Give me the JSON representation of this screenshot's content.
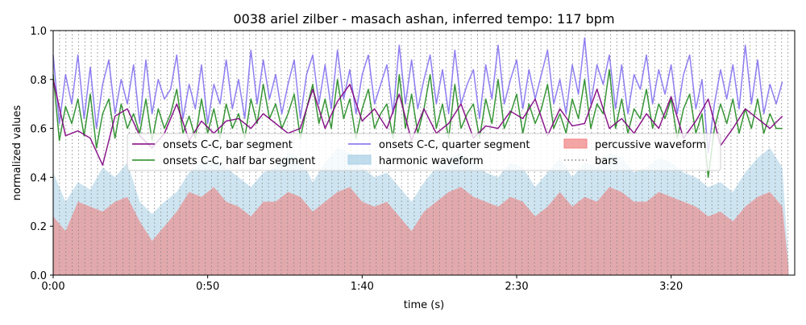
{
  "chart_data": {
    "type": "line",
    "title": "0038 ariel zilber - masach ashan, inferred tempo: 117 bpm",
    "xlabel": "time (s)",
    "ylabel": "normalized values",
    "xlim": [
      0,
      240
    ],
    "ylim": [
      0,
      1.0
    ],
    "grid": false,
    "legend_position": "upper-center",
    "x_ticks": [
      {
        "value": 0,
        "label": "0:00"
      },
      {
        "value": 50,
        "label": "0:50"
      },
      {
        "value": 100,
        "label": "1:40"
      },
      {
        "value": 150,
        "label": "2:30"
      },
      {
        "value": 200,
        "label": "3:20"
      }
    ],
    "y_ticks": [
      {
        "value": 0.0,
        "label": "0.0"
      },
      {
        "value": 0.2,
        "label": "0.2"
      },
      {
        "value": 0.4,
        "label": "0.4"
      },
      {
        "value": 0.6,
        "label": "0.6"
      },
      {
        "value": 0.8,
        "label": "0.8"
      },
      {
        "value": 1.0,
        "label": "1.0"
      }
    ],
    "legend": [
      {
        "label": "onsets C-C, bar segment",
        "color": "#800080",
        "kind": "line"
      },
      {
        "label": "onsets C-C, half bar segment",
        "color": "#228B22",
        "kind": "line"
      },
      {
        "label": "onsets C-C, quarter segment",
        "color": "#7B68EE",
        "kind": "line"
      },
      {
        "label": "harmonic waveform",
        "color": "#a6cfe6",
        "kind": "area"
      },
      {
        "label": "percussive waveform",
        "color": "#f08080",
        "kind": "area"
      },
      {
        "label": "bars",
        "color": "#808080",
        "kind": "dotted"
      }
    ],
    "bar_interval_s": 2.05,
    "duration_s": 238,
    "series": [
      {
        "name": "onsets C-C, bar segment",
        "color": "#800080",
        "x": [
          0,
          4,
          8,
          12,
          16,
          20,
          24,
          28,
          32,
          36,
          40,
          44,
          48,
          52,
          56,
          60,
          64,
          68,
          72,
          76,
          80,
          84,
          88,
          92,
          96,
          100,
          104,
          108,
          112,
          116,
          120,
          124,
          128,
          132,
          136,
          140,
          144,
          148,
          152,
          156,
          160,
          164,
          168,
          172,
          176,
          180,
          184,
          188,
          192,
          196,
          200,
          204,
          208,
          212,
          216,
          220,
          224,
          228,
          232,
          236
        ],
        "y": [
          0.8,
          0.57,
          0.59,
          0.56,
          0.45,
          0.65,
          0.68,
          0.57,
          0.52,
          0.58,
          0.7,
          0.55,
          0.63,
          0.58,
          0.63,
          0.64,
          0.6,
          0.66,
          0.62,
          0.58,
          0.6,
          0.76,
          0.6,
          0.71,
          0.78,
          0.63,
          0.68,
          0.6,
          0.74,
          0.55,
          0.68,
          0.58,
          0.62,
          0.7,
          0.56,
          0.61,
          0.6,
          0.67,
          0.64,
          0.72,
          0.57,
          0.68,
          0.61,
          0.62,
          0.76,
          0.6,
          0.64,
          0.58,
          0.66,
          0.6,
          0.73,
          0.56,
          0.63,
          0.72,
          0.53,
          0.6,
          0.68,
          0.64,
          0.6,
          0.65
        ]
      },
      {
        "name": "onsets C-C, half bar segment",
        "color": "#228B22",
        "x": [
          0,
          2,
          4,
          6,
          8,
          10,
          12,
          14,
          16,
          18,
          20,
          22,
          24,
          26,
          28,
          30,
          32,
          34,
          36,
          38,
          40,
          42,
          44,
          46,
          48,
          50,
          52,
          54,
          56,
          58,
          60,
          62,
          64,
          66,
          68,
          70,
          72,
          74,
          76,
          78,
          80,
          82,
          84,
          86,
          88,
          90,
          92,
          94,
          96,
          98,
          100,
          102,
          104,
          106,
          108,
          110,
          112,
          114,
          116,
          118,
          120,
          122,
          124,
          126,
          128,
          130,
          132,
          134,
          136,
          138,
          140,
          142,
          144,
          146,
          148,
          150,
          152,
          154,
          156,
          158,
          160,
          162,
          164,
          166,
          168,
          170,
          172,
          174,
          176,
          178,
          180,
          182,
          184,
          186,
          188,
          190,
          192,
          194,
          196,
          198,
          200,
          202,
          204,
          206,
          208,
          210,
          212,
          214,
          216,
          218,
          220,
          222,
          224,
          226,
          228,
          230,
          232,
          234,
          236
        ],
        "y": [
          0.82,
          0.55,
          0.69,
          0.62,
          0.72,
          0.57,
          0.74,
          0.52,
          0.66,
          0.72,
          0.56,
          0.7,
          0.6,
          0.66,
          0.58,
          0.72,
          0.55,
          0.68,
          0.6,
          0.66,
          0.76,
          0.58,
          0.65,
          0.56,
          0.72,
          0.58,
          0.68,
          0.56,
          0.7,
          0.6,
          0.66,
          0.56,
          0.72,
          0.62,
          0.78,
          0.64,
          0.7,
          0.6,
          0.66,
          0.74,
          0.56,
          0.68,
          0.78,
          0.62,
          0.72,
          0.6,
          0.8,
          0.64,
          0.72,
          0.56,
          0.68,
          0.76,
          0.6,
          0.66,
          0.7,
          0.56,
          0.82,
          0.6,
          0.74,
          0.58,
          0.68,
          0.82,
          0.6,
          0.7,
          0.56,
          0.78,
          0.6,
          0.66,
          0.7,
          0.56,
          0.72,
          0.62,
          0.8,
          0.6,
          0.66,
          0.74,
          0.58,
          0.7,
          0.62,
          0.68,
          0.78,
          0.6,
          0.66,
          0.58,
          0.72,
          0.64,
          0.8,
          0.6,
          0.7,
          0.66,
          0.84,
          0.6,
          0.72,
          0.58,
          0.68,
          0.64,
          0.76,
          0.6,
          0.7,
          0.64,
          0.72,
          0.56,
          0.68,
          0.74,
          0.58,
          0.66,
          0.4,
          0.6,
          0.7,
          0.62,
          0.72,
          0.58,
          0.68,
          0.6,
          0.72,
          0.58,
          0.66,
          0.6,
          0.6
        ]
      },
      {
        "name": "onsets C-C, quarter segment",
        "color": "#7B68EE",
        "x": [
          0,
          2,
          4,
          6,
          8,
          10,
          12,
          14,
          16,
          18,
          20,
          22,
          24,
          26,
          28,
          30,
          32,
          34,
          36,
          38,
          40,
          42,
          44,
          46,
          48,
          50,
          52,
          54,
          56,
          58,
          60,
          62,
          64,
          66,
          68,
          70,
          72,
          74,
          76,
          78,
          80,
          82,
          84,
          86,
          88,
          90,
          92,
          94,
          96,
          98,
          100,
          102,
          104,
          106,
          108,
          110,
          112,
          114,
          116,
          118,
          120,
          122,
          124,
          126,
          128,
          130,
          132,
          134,
          136,
          138,
          140,
          142,
          144,
          146,
          148,
          150,
          152,
          154,
          156,
          158,
          160,
          162,
          164,
          166,
          168,
          170,
          172,
          174,
          176,
          178,
          180,
          182,
          184,
          186,
          188,
          190,
          192,
          194,
          196,
          198,
          200,
          202,
          204,
          206,
          208,
          210,
          212,
          214,
          216,
          218,
          220,
          222,
          224,
          226,
          228,
          230,
          232,
          234,
          236
        ],
        "y": [
          0.9,
          0.62,
          0.82,
          0.7,
          0.9,
          0.64,
          0.85,
          0.6,
          0.78,
          0.88,
          0.66,
          0.8,
          0.7,
          0.86,
          0.62,
          0.88,
          0.66,
          0.8,
          0.72,
          0.76,
          0.9,
          0.64,
          0.78,
          0.68,
          0.86,
          0.62,
          0.78,
          0.7,
          0.88,
          0.68,
          0.8,
          0.64,
          0.92,
          0.7,
          0.88,
          0.72,
          0.82,
          0.66,
          0.78,
          0.88,
          0.64,
          0.82,
          0.9,
          0.7,
          0.86,
          0.68,
          0.92,
          0.72,
          0.84,
          0.66,
          0.82,
          0.9,
          0.7,
          0.78,
          0.86,
          0.66,
          0.94,
          0.7,
          0.88,
          0.68,
          0.8,
          0.9,
          0.7,
          0.84,
          0.66,
          0.92,
          0.7,
          0.78,
          0.84,
          0.64,
          0.86,
          0.72,
          0.94,
          0.7,
          0.8,
          0.88,
          0.68,
          0.84,
          0.72,
          0.82,
          0.92,
          0.7,
          0.8,
          0.66,
          0.86,
          0.74,
          0.97,
          0.7,
          0.86,
          0.78,
          0.9,
          0.68,
          0.86,
          0.66,
          0.82,
          0.76,
          0.9,
          0.7,
          0.84,
          0.74,
          0.86,
          0.66,
          0.82,
          0.9,
          0.68,
          0.8,
          0.5,
          0.7,
          0.84,
          0.72,
          0.86,
          0.68,
          0.94,
          0.7,
          0.88,
          0.66,
          0.78,
          0.7,
          0.79
        ]
      }
    ],
    "waveforms": [
      {
        "name": "harmonic waveform",
        "color": "#a6cfe6",
        "x": [
          0,
          4,
          8,
          12,
          16,
          20,
          24,
          28,
          32,
          36,
          40,
          44,
          48,
          52,
          56,
          60,
          64,
          68,
          72,
          76,
          80,
          84,
          88,
          92,
          96,
          100,
          104,
          108,
          112,
          116,
          120,
          124,
          128,
          132,
          136,
          140,
          144,
          148,
          152,
          156,
          160,
          164,
          168,
          172,
          176,
          180,
          184,
          188,
          192,
          196,
          200,
          204,
          208,
          212,
          216,
          220,
          224,
          228,
          232,
          236,
          238
        ],
        "y": [
          0.42,
          0.3,
          0.38,
          0.35,
          0.44,
          0.4,
          0.46,
          0.3,
          0.25,
          0.3,
          0.34,
          0.42,
          0.46,
          0.48,
          0.44,
          0.4,
          0.36,
          0.42,
          0.44,
          0.5,
          0.48,
          0.38,
          0.46,
          0.52,
          0.5,
          0.44,
          0.4,
          0.42,
          0.36,
          0.3,
          0.38,
          0.44,
          0.48,
          0.5,
          0.46,
          0.42,
          0.4,
          0.46,
          0.44,
          0.36,
          0.42,
          0.48,
          0.4,
          0.46,
          0.44,
          0.5,
          0.48,
          0.42,
          0.44,
          0.48,
          0.46,
          0.42,
          0.4,
          0.36,
          0.38,
          0.34,
          0.42,
          0.48,
          0.52,
          0.44,
          0.05
        ]
      },
      {
        "name": "percussive waveform",
        "color": "#f08080",
        "x": [
          0,
          4,
          8,
          12,
          16,
          20,
          24,
          28,
          32,
          36,
          40,
          44,
          48,
          52,
          56,
          60,
          64,
          68,
          72,
          76,
          80,
          84,
          88,
          92,
          96,
          100,
          104,
          108,
          112,
          116,
          120,
          124,
          128,
          132,
          136,
          140,
          144,
          148,
          152,
          156,
          160,
          164,
          168,
          172,
          176,
          180,
          184,
          188,
          192,
          196,
          200,
          204,
          208,
          212,
          216,
          220,
          224,
          228,
          232,
          236,
          238
        ],
        "y": [
          0.24,
          0.18,
          0.3,
          0.28,
          0.26,
          0.3,
          0.32,
          0.22,
          0.14,
          0.2,
          0.26,
          0.34,
          0.32,
          0.36,
          0.3,
          0.28,
          0.24,
          0.3,
          0.3,
          0.34,
          0.32,
          0.26,
          0.3,
          0.34,
          0.36,
          0.3,
          0.28,
          0.3,
          0.24,
          0.18,
          0.26,
          0.3,
          0.34,
          0.36,
          0.32,
          0.3,
          0.28,
          0.32,
          0.3,
          0.24,
          0.28,
          0.34,
          0.28,
          0.32,
          0.3,
          0.36,
          0.34,
          0.3,
          0.3,
          0.34,
          0.32,
          0.3,
          0.28,
          0.24,
          0.26,
          0.22,
          0.28,
          0.32,
          0.34,
          0.28,
          0.03
        ]
      }
    ]
  }
}
